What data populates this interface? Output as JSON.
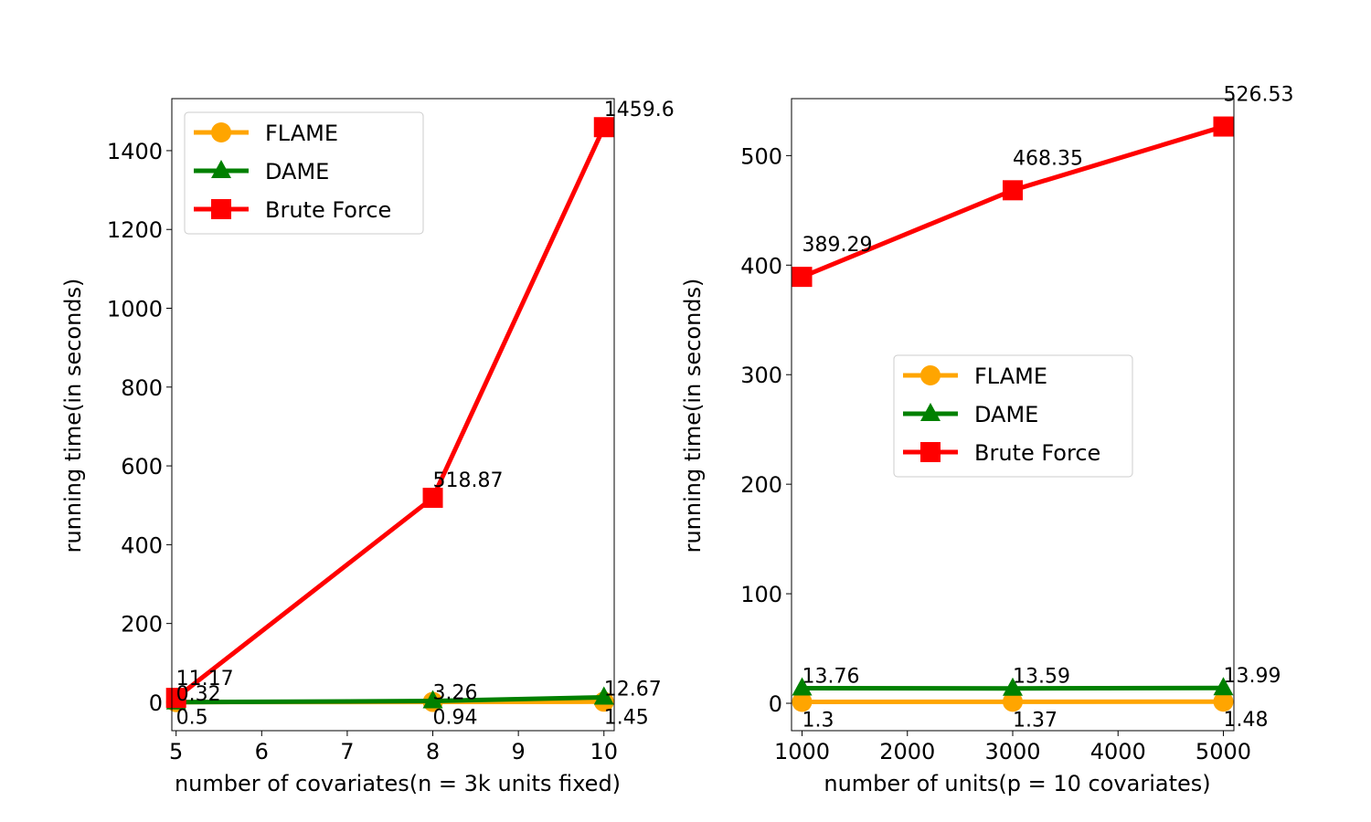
{
  "chart_data": [
    {
      "type": "line",
      "xlabel": "number of covariates(n = 3k units fixed)",
      "ylabel": "running time(in seconds)",
      "x": [
        5,
        8,
        10
      ],
      "xlim": [
        4.95,
        10.12
      ],
      "ylim": [
        -72,
        1532
      ],
      "xticks": [
        5,
        6,
        7,
        8,
        9,
        10
      ],
      "yticks": [
        0,
        200,
        400,
        600,
        800,
        1000,
        1200,
        1400
      ],
      "legend_position": "top-left",
      "series": [
        {
          "name": "FLAME",
          "color": "#ffa500",
          "marker": "circle",
          "values": [
            0.5,
            0.94,
            1.45
          ],
          "labels": [
            "0.5",
            "0.94",
            "1.45"
          ]
        },
        {
          "name": "DAME",
          "color": "#008000",
          "marker": "triangle",
          "values": [
            0.32,
            3.26,
            12.67
          ],
          "labels": [
            "0.32",
            "3.26",
            "12.67"
          ]
        },
        {
          "name": "Brute Force",
          "color": "#ff0000",
          "marker": "square",
          "values": [
            11.17,
            518.87,
            1459.6
          ],
          "labels": [
            "11.17",
            "518.87",
            "1459.6"
          ]
        }
      ]
    },
    {
      "type": "line",
      "xlabel": "number of units(p = 10 covariates)",
      "ylabel": "running time(in seconds)",
      "x": [
        1000,
        3000,
        5000
      ],
      "xlim": [
        900,
        5100
      ],
      "ylim": [
        -25,
        552
      ],
      "xticks": [
        1000,
        2000,
        3000,
        4000,
        5000
      ],
      "yticks": [
        0,
        100,
        200,
        300,
        400,
        500
      ],
      "legend_position": "center",
      "series": [
        {
          "name": "FLAME",
          "color": "#ffa500",
          "marker": "circle",
          "values": [
            1.3,
            1.37,
            1.48
          ],
          "labels": [
            "1.3",
            "1.37",
            "1.48"
          ]
        },
        {
          "name": "DAME",
          "color": "#008000",
          "marker": "triangle",
          "values": [
            13.76,
            13.59,
            13.99
          ],
          "labels": [
            "13.76",
            "13.59",
            "13.99"
          ]
        },
        {
          "name": "Brute Force",
          "color": "#ff0000",
          "marker": "square",
          "values": [
            389.29,
            468.35,
            526.53
          ],
          "labels": [
            "389.29",
            "468.35",
            "526.53"
          ]
        }
      ]
    }
  ]
}
